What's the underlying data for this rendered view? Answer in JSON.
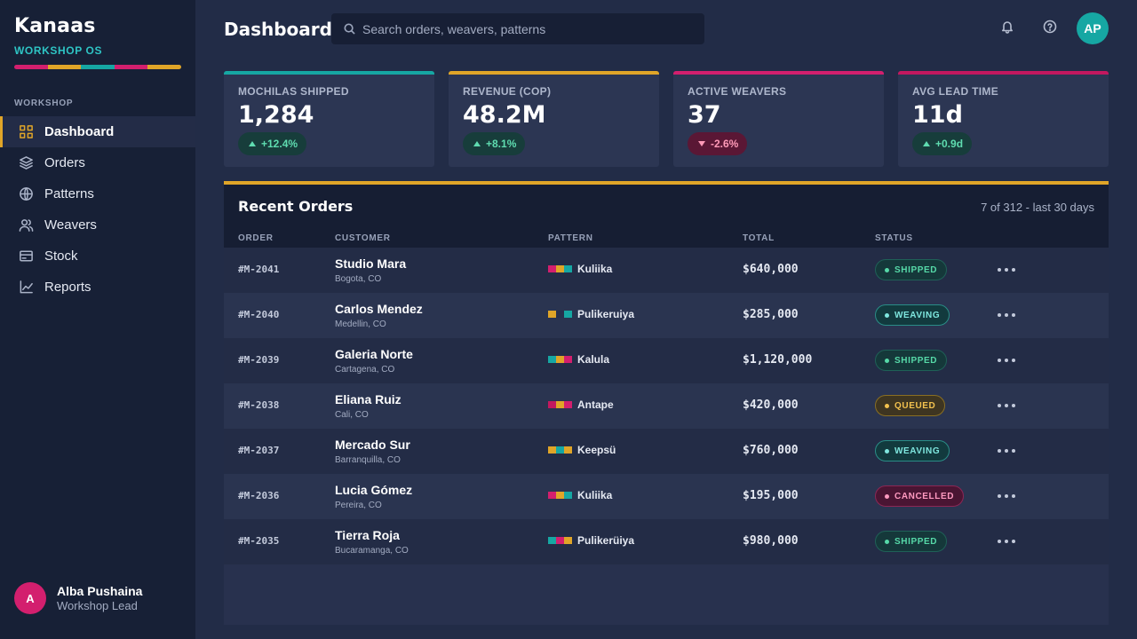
{
  "brand": {
    "title": "Kanaas",
    "subtitle": "WORKSHOP OS",
    "stripe_colors": [
      "#d31f6e",
      "#e0a528",
      "#16a7a3",
      "#d31f6e",
      "#e0a528"
    ]
  },
  "sidebar": {
    "section_label": "WORKSHOP",
    "items": [
      {
        "label": "Dashboard",
        "icon": "grid-icon",
        "active": true
      },
      {
        "label": "Orders",
        "icon": "layers-icon"
      },
      {
        "label": "Patterns",
        "icon": "globe-icon"
      },
      {
        "label": "Weavers",
        "icon": "users-icon"
      },
      {
        "label": "Stock",
        "icon": "card-icon"
      },
      {
        "label": "Reports",
        "icon": "chart-icon"
      }
    ],
    "user": {
      "initial": "A",
      "name": "Alba Pushaina",
      "role": "Workshop Lead"
    }
  },
  "header": {
    "title": "Dashboard",
    "search_placeholder": "Search orders, weavers, patterns",
    "avatar_initials": "AP"
  },
  "kpis": [
    {
      "label": "MOCHILAS SHIPPED",
      "value": "1,284",
      "delta": "+12.4%",
      "direction": "up",
      "color": "#16a7a3"
    },
    {
      "label": "REVENUE (COP)",
      "value": "48.2M",
      "delta": "+8.1%",
      "direction": "up",
      "color": "#e0a528"
    },
    {
      "label": "ACTIVE WEAVERS",
      "value": "37",
      "delta": "-2.6%",
      "direction": "down",
      "color": "#d31f6e"
    },
    {
      "label": "AVG LEAD TIME",
      "value": "11d",
      "delta": "+0.9d",
      "direction": "up",
      "color": "#c3185f"
    }
  ],
  "orders": {
    "title": "Recent Orders",
    "meta": "7 of 312 - last 30 days",
    "columns": {
      "order": "ORDER",
      "customer": "CUSTOMER",
      "pattern": "PATTERN",
      "total": "TOTAL",
      "status": "STATUS"
    },
    "rows": [
      {
        "id": "#M-2041",
        "customer": "Studio Mara",
        "city": "Bogota, CO",
        "pattern": "Kuliika",
        "swatch": [
          "#d31f6e",
          "#e0a528",
          "#16a7a3"
        ],
        "total": "$640,000",
        "status": "SHIPPED"
      },
      {
        "id": "#M-2040",
        "customer": "Carlos Mendez",
        "city": "Medellin, CO",
        "pattern": "Pulikeruiya",
        "swatch": [
          "#e0a528",
          "#28314e",
          "#16a7a3"
        ],
        "total": "$285,000",
        "status": "WEAVING"
      },
      {
        "id": "#M-2039",
        "customer": "Galeria Norte",
        "city": "Cartagena, CO",
        "pattern": "Kalula",
        "swatch": [
          "#16a7a3",
          "#e0a528",
          "#d31f6e"
        ],
        "total": "$1,120,000",
        "status": "SHIPPED"
      },
      {
        "id": "#M-2038",
        "customer": "Eliana Ruiz",
        "city": "Cali, CO",
        "pattern": "Antape",
        "swatch": [
          "#c3185f",
          "#e0a528",
          "#d31f6e"
        ],
        "total": "$420,000",
        "status": "QUEUED"
      },
      {
        "id": "#M-2037",
        "customer": "Mercado Sur",
        "city": "Barranquilla, CO",
        "pattern": "Keepsü",
        "swatch": [
          "#e0a528",
          "#16a7a3",
          "#e0a528"
        ],
        "total": "$760,000",
        "status": "WEAVING"
      },
      {
        "id": "#M-2036",
        "customer": "Lucia Gómez",
        "city": "Pereira, CO",
        "pattern": "Kuliika",
        "swatch": [
          "#d31f6e",
          "#e0a528",
          "#16a7a3"
        ],
        "total": "$195,000",
        "status": "CANCELLED"
      },
      {
        "id": "#M-2035",
        "customer": "Tierra Roja",
        "city": "Bucaramanga, CO",
        "pattern": "Pulikerüiya",
        "swatch": [
          "#16a7a3",
          "#d31f6e",
          "#e0a528"
        ],
        "total": "$980,000",
        "status": "SHIPPED"
      }
    ]
  }
}
